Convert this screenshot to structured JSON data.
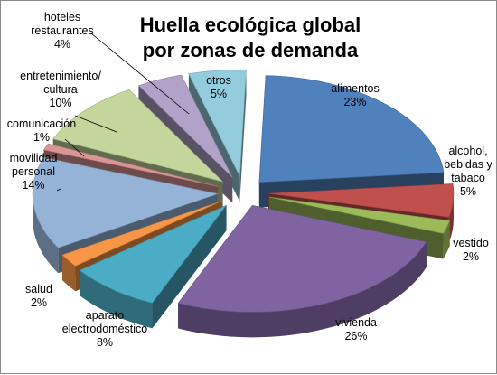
{
  "chart_data": {
    "type": "pie",
    "variant": "3d-exploded",
    "title_lines": [
      "Huella ecológica global",
      "por zonas de demanda"
    ],
    "slices": [
      {
        "category": [
          "alimentos"
        ],
        "value": 23,
        "value_label": "23%",
        "color": "#4F81BD"
      },
      {
        "category": [
          "alcohol,",
          "bebidas y",
          "tabaco"
        ],
        "value": 5,
        "value_label": "5%",
        "color": "#C0504D"
      },
      {
        "category": [
          "vestido"
        ],
        "value": 2,
        "value_label": "2%",
        "color": "#9BBB59"
      },
      {
        "category": [
          "vivienda"
        ],
        "value": 26,
        "value_label": "26%",
        "color": "#8064A2"
      },
      {
        "category": [
          "aparato",
          "electrodoméstico"
        ],
        "value": 8,
        "value_label": "8%",
        "color": "#4BACC6"
      },
      {
        "category": [
          "salud"
        ],
        "value": 2,
        "value_label": "2%",
        "color": "#F79646"
      },
      {
        "category": [
          "movilidad",
          "personal"
        ],
        "value": 14,
        "value_label": "14%",
        "color": "#95B3D7"
      },
      {
        "category": [
          "comunicación"
        ],
        "value": 1,
        "value_label": "1%",
        "color": "#D99694"
      },
      {
        "category": [
          "entretenimiento/",
          "cultura"
        ],
        "value": 10,
        "value_label": "10%",
        "color": "#C3D69B"
      },
      {
        "category": [
          "hoteles",
          "restaurantes"
        ],
        "value": 4,
        "value_label": "4%",
        "color": "#B2A2C7"
      },
      {
        "category": [
          "otros"
        ],
        "value": 5,
        "value_label": "5%",
        "color": "#93CDDD"
      }
    ]
  }
}
